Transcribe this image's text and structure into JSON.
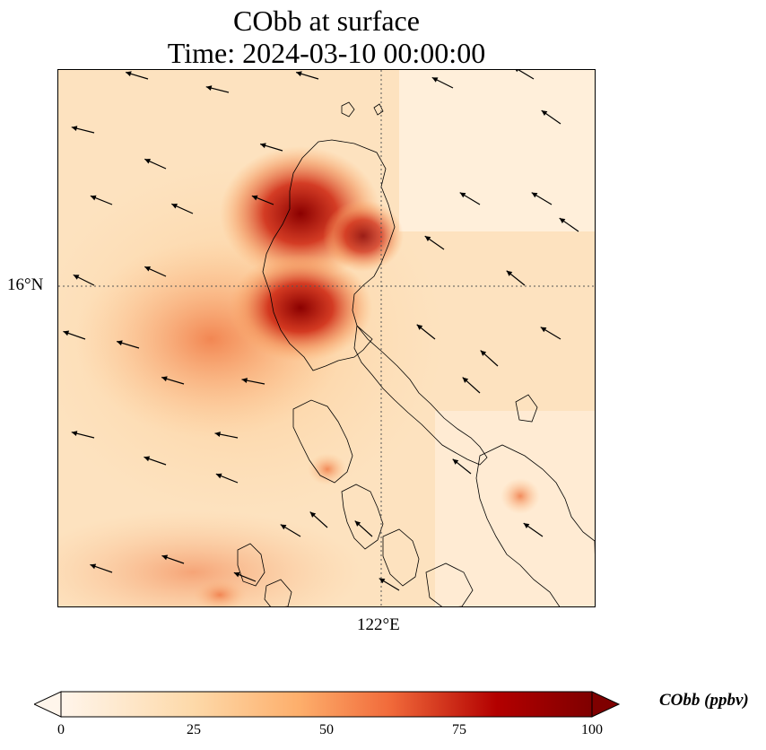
{
  "title": "CObb at surface",
  "subtitle": "Time: 2024-03-10 00:00:00",
  "lat_gridline_label": "16°N",
  "lon_gridline_label": "122°E",
  "colorbar": {
    "label": "CObb (ppbv)",
    "min": 0,
    "max": 100,
    "extend": "both",
    "ticks": [
      "0",
      "25",
      "50",
      "75",
      "100"
    ],
    "colormap": [
      "#fff5eb",
      "#fdd9a9",
      "#fdae6b",
      "#f16a3a",
      "#b30000",
      "#7f0000"
    ]
  },
  "colors": {
    "coastline": "#000000",
    "arrows": "#000000",
    "gridlines": "#555555"
  },
  "overlays": [
    "coastlines",
    "wind-vectors",
    "gridlines"
  ]
}
